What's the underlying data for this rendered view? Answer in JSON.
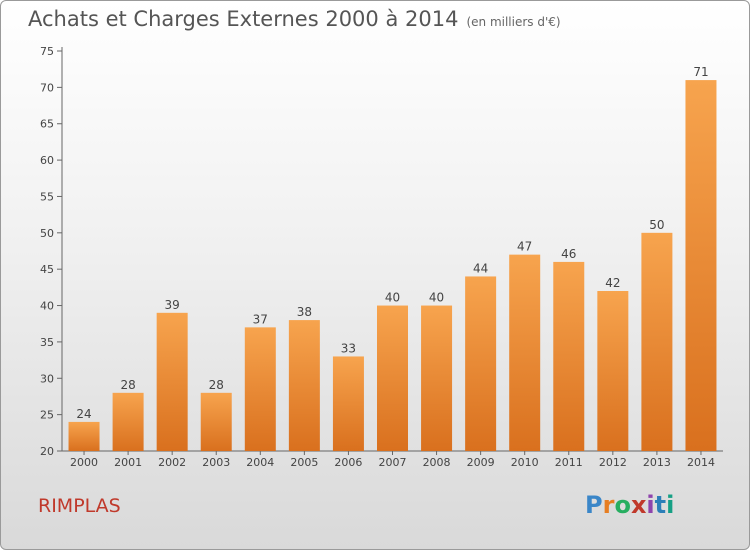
{
  "header": {
    "title": "Achats et Charges Externes 2000 à 2014",
    "subtitle": "(en milliers d'€)"
  },
  "commune": "RIMPLAS",
  "logo": {
    "text": "Proxiti",
    "letters": [
      "P",
      "r",
      "o",
      "x",
      "i",
      "t",
      "i"
    ],
    "colors": [
      "#3a86c8",
      "#e67e22",
      "#27ae60",
      "#c0392b",
      "#8e44ad",
      "#2c7fb8",
      "#16a085"
    ]
  },
  "chart_data": {
    "type": "bar",
    "title": "Achats et Charges Externes 2000 à 2014",
    "subtitle": "(en milliers d'€)",
    "xlabel": "",
    "ylabel": "",
    "categories": [
      "2000",
      "2001",
      "2002",
      "2003",
      "2004",
      "2005",
      "2006",
      "2007",
      "2008",
      "2009",
      "2010",
      "2011",
      "2012",
      "2013",
      "2014"
    ],
    "values": [
      24,
      28,
      39,
      28,
      37,
      38,
      33,
      40,
      40,
      44,
      47,
      46,
      42,
      50,
      71
    ],
    "ylim": [
      20,
      75
    ],
    "yticks": [
      20,
      25,
      30,
      35,
      40,
      45,
      50,
      55,
      60,
      65,
      70,
      75
    ],
    "grid": false,
    "bar_color_top": "#f7a44e",
    "bar_color_bottom": "#d9701e"
  }
}
